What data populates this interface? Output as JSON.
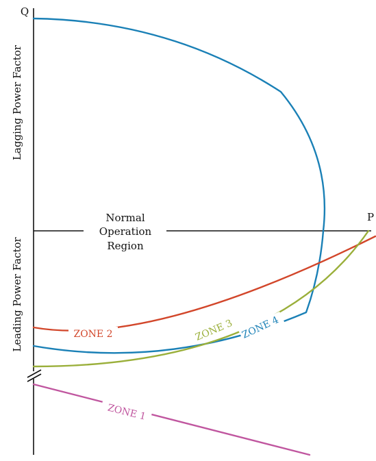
{
  "axes": {
    "q_label": "Q",
    "p_label": "P",
    "upper_label": "Lagging Power Factor",
    "lower_label": "Leading Power Factor"
  },
  "region": {
    "line1": "Normal",
    "line2": "Operation",
    "line3": "Region"
  },
  "zones": [
    {
      "label": "ZONE 1",
      "color": "#c0569f"
    },
    {
      "label": "ZONE 2",
      "color": "#d2462a"
    },
    {
      "label": "ZONE 3",
      "color": "#9aaf3a"
    },
    {
      "label": "ZONE 4",
      "color": "#1a80b6"
    }
  ],
  "capability_curve_color": "#1a80b6"
}
